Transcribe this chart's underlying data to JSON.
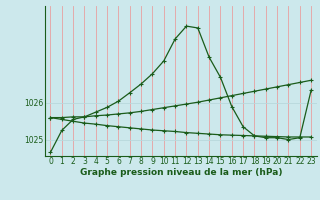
{
  "title": "Graphe pression niveau de la mer (hPa)",
  "bg_color": "#cce8ec",
  "grid_color_v": "#e8a0a0",
  "grid_color_h": "#b8d8dc",
  "line_color": "#1a5c1a",
  "xlim": [
    -0.5,
    23.5
  ],
  "ylim": [
    1024.55,
    1028.65
  ],
  "yticks": [
    1025,
    1026
  ],
  "xticks": [
    0,
    1,
    2,
    3,
    4,
    5,
    6,
    7,
    8,
    9,
    10,
    11,
    12,
    13,
    14,
    15,
    16,
    17,
    18,
    19,
    20,
    21,
    22,
    23
  ],
  "line1_x": [
    0,
    1,
    2,
    3,
    4,
    5,
    6,
    7,
    8,
    9,
    10,
    11,
    12,
    13,
    14,
    15,
    16,
    17,
    18,
    19,
    20,
    21,
    22,
    23
  ],
  "line1_y": [
    1024.65,
    1025.25,
    1025.55,
    1025.62,
    1025.75,
    1025.88,
    1026.05,
    1026.28,
    1026.52,
    1026.8,
    1027.15,
    1027.75,
    1028.1,
    1028.05,
    1027.25,
    1026.7,
    1025.9,
    1025.35,
    1025.1,
    1025.05,
    1025.05,
    1025.0,
    1025.05,
    1026.35
  ],
  "line2_x": [
    0,
    1,
    2,
    3,
    4,
    5,
    6,
    7,
    8,
    9,
    10,
    11,
    12,
    13,
    14,
    15,
    16,
    17,
    18,
    19,
    20,
    21,
    22,
    23
  ],
  "line2_y": [
    1025.6,
    1025.6,
    1025.62,
    1025.62,
    1025.65,
    1025.67,
    1025.7,
    1025.73,
    1025.77,
    1025.82,
    1025.87,
    1025.92,
    1025.97,
    1026.02,
    1026.08,
    1026.14,
    1026.2,
    1026.26,
    1026.32,
    1026.38,
    1026.44,
    1026.5,
    1026.56,
    1026.62
  ],
  "line3_x": [
    0,
    1,
    2,
    3,
    4,
    5,
    6,
    7,
    8,
    9,
    10,
    11,
    12,
    13,
    14,
    15,
    16,
    17,
    18,
    19,
    20,
    21,
    22,
    23
  ],
  "line3_y": [
    1025.6,
    1025.55,
    1025.5,
    1025.45,
    1025.42,
    1025.38,
    1025.35,
    1025.32,
    1025.29,
    1025.26,
    1025.24,
    1025.22,
    1025.19,
    1025.17,
    1025.15,
    1025.13,
    1025.12,
    1025.11,
    1025.1,
    1025.09,
    1025.08,
    1025.07,
    1025.07,
    1025.07
  ],
  "tick_fontsize": 5.5,
  "title_fontsize": 6.5
}
